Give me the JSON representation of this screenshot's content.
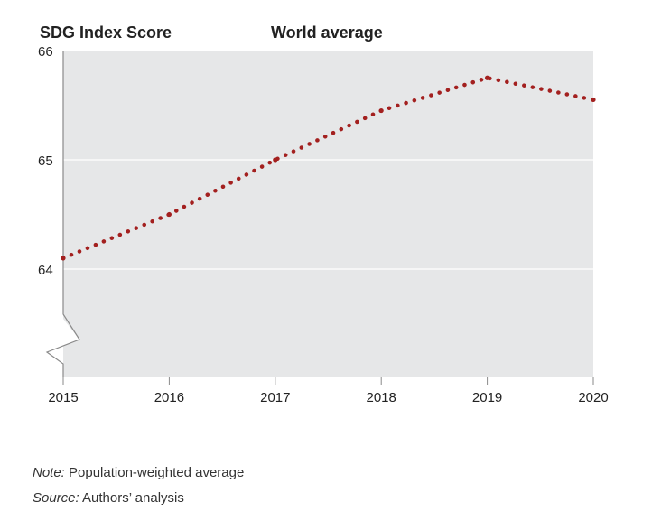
{
  "chart_data": {
    "type": "line",
    "title": "World average",
    "ylabel": "SDG Index Score",
    "xlabel": "",
    "x": [
      2015,
      2016,
      2017,
      2018,
      2019,
      2020
    ],
    "series": [
      {
        "values": [
          64.1,
          64.5,
          65.0,
          65.45,
          65.75,
          65.55
        ]
      }
    ],
    "xlim": [
      2015,
      2020
    ],
    "ylim": [
      63.0,
      66.0
    ],
    "yticks": [
      64,
      65,
      66
    ],
    "grid": true,
    "axis_break": true,
    "line_style": "dotted",
    "colors": {
      "line": "#a3201f",
      "plot_bg": "#e6e7e8",
      "grid": "#ffffff"
    }
  },
  "notes": {
    "note_label": "Note:",
    "note_text": " Population-weighted average",
    "source_label": "Source:",
    "source_text": " Authors’ analysis"
  }
}
